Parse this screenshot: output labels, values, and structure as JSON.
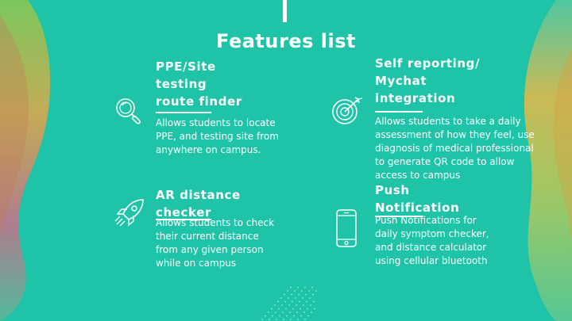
{
  "slide": {
    "title": "Features list",
    "features": [
      {
        "title_lines": [
          "PPE/Site",
          "testing",
          "route finder"
        ],
        "description": "Allows students to locate PPE, and testing site from anywhere on campus.",
        "icon": "magnifier-icon"
      },
      {
        "title_lines": [
          "Self reporting/",
          "Mychat",
          "integration"
        ],
        "description": "Allows students to take a daily assessment of how they feel, use diagnosis of medical professional to generate  QR code to allow access to campus",
        "icon": "target-icon"
      },
      {
        "title_lines": [
          "AR distance",
          "checker"
        ],
        "description": "Allows students to check  their current distance from any given person while on campus",
        "icon": "rocket-icon"
      },
      {
        "title_lines": [
          "Push",
          "Notification"
        ],
        "description": "Push Notifications for daily symptom checker, and distance calculator using cellular bluetooth",
        "icon": "smartphone-icon"
      }
    ]
  },
  "colors": {
    "background": "#1fc4a8",
    "text": "#ffffff",
    "blob_orange": "#e8a040",
    "blob_pink": "#c8708a",
    "blob_green": "#8cc850"
  }
}
